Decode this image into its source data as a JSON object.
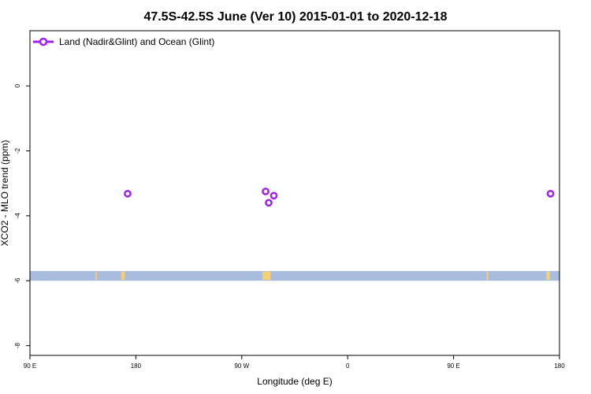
{
  "chart_data": {
    "type": "scatter",
    "title": "47.5S-42.5S June (Ver 10)   2015-01-01 to 2020-12-18",
    "xlabel": "Longitude (deg E)",
    "ylabel": "XCO2 - MLO trend (ppm)",
    "xlim": [
      90,
      450
    ],
    "ylim": [
      -8.3,
      1.7
    ],
    "x_ticks": [
      {
        "value": 90,
        "label": "90 E"
      },
      {
        "value": 162,
        "label": "180"
      },
      {
        "value": 234,
        "label": "90 W"
      },
      {
        "value": 306,
        "label": "0"
      },
      {
        "value": 378,
        "label": "90 E"
      },
      {
        "value": 450,
        "label": "180"
      }
    ],
    "y_ticks": [
      {
        "value": 0,
        "label": "0"
      },
      {
        "value": -2,
        "label": "-2"
      },
      {
        "value": -4,
        "label": "-4"
      },
      {
        "value": -6,
        "label": "-6"
      },
      {
        "value": -8,
        "label": "-8"
      }
    ],
    "legend": {
      "position": "top-left"
    },
    "series": [
      {
        "name": "Land (Nadir&Glint) and Ocean (Glint)",
        "color": "#a020f0",
        "marker": "open-circle",
        "points": [
          {
            "x": 156.4,
            "y": -3.32
          },
          {
            "x": 250.2,
            "y": -3.25
          },
          {
            "x": 252.3,
            "y": -3.6
          },
          {
            "x": 255.8,
            "y": -3.38
          },
          {
            "x": 443.9,
            "y": -3.32
          }
        ]
      }
    ],
    "background_band": {
      "y_from": -6.0,
      "y_to": -5.7,
      "color": "#a8bcdd"
    },
    "land_markers": {
      "color": "#f8d070",
      "y_from": -5.97,
      "y_to": -5.72,
      "segments": [
        {
          "x_from": 134.5,
          "x_to": 135.5
        },
        {
          "x_from": 152.0,
          "x_to": 154.5
        },
        {
          "x_from": 248.0,
          "x_to": 253.5
        },
        {
          "x_from": 400.5,
          "x_to": 401.5
        },
        {
          "x_from": 441.0,
          "x_to": 443.5
        }
      ]
    }
  }
}
